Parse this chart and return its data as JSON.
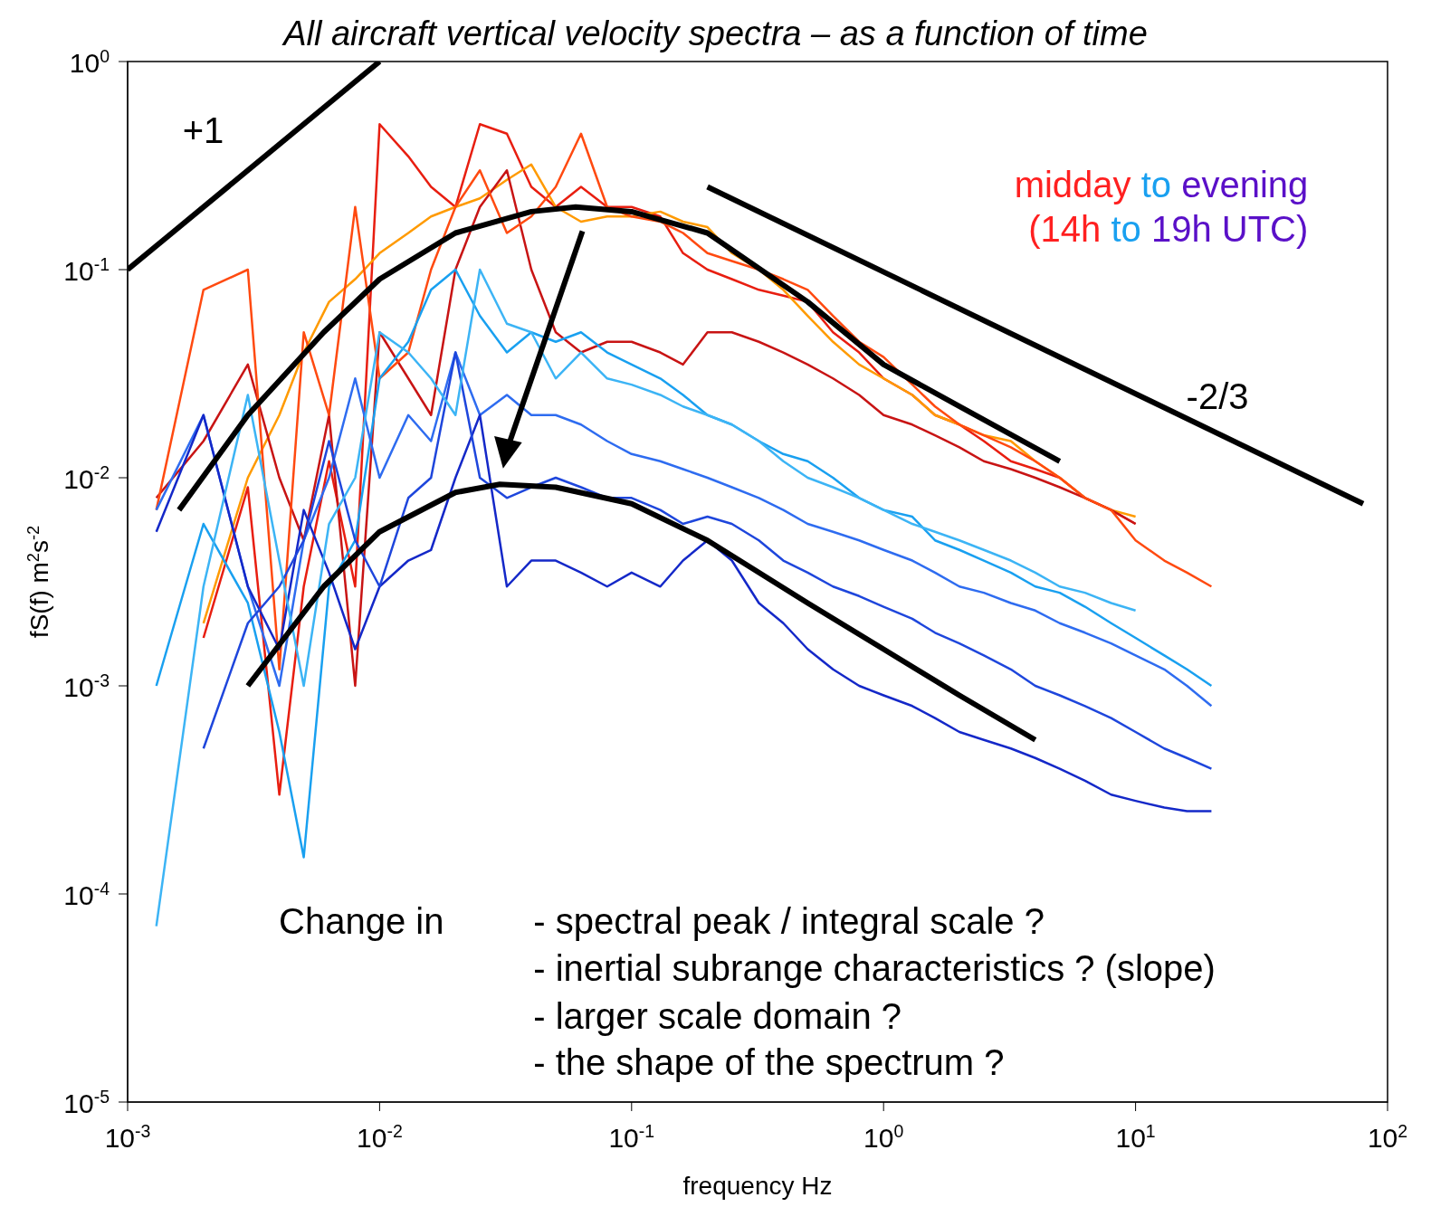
{
  "chart_data": {
    "type": "line",
    "title": "All aircraft vertical velocity spectra – as a function of time",
    "xlabel": "frequency Hz",
    "ylabel": "fS(f)  m$^{2}$s$^{-2}$",
    "log": "xy",
    "xlim": [
      0.001,
      100
    ],
    "ylim": [
      1e-05,
      1
    ],
    "xticks": [
      {
        "value": 0.001,
        "label": "10$^{-3}$"
      },
      {
        "value": 0.01,
        "label": "10$^{-2}$"
      },
      {
        "value": 0.1,
        "label": "10$^{-1}$"
      },
      {
        "value": 1,
        "label": "10$^{0}$"
      },
      {
        "value": 10,
        "label": "10$^{1}$"
      },
      {
        "value": 100,
        "label": "10$^{2}$"
      }
    ],
    "yticks": [
      {
        "value": 1e-05,
        "label": "10$^{-5}$"
      },
      {
        "value": 0.0001,
        "label": "10$^{-4}$"
      },
      {
        "value": 0.001,
        "label": "10$^{-3}$"
      },
      {
        "value": 0.01,
        "label": "10$^{-2}$"
      },
      {
        "value": 0.1,
        "label": "10$^{-1}$"
      },
      {
        "value": 1,
        "label": "10$^{0}$"
      }
    ],
    "x": [
      0.0013,
      0.002,
      0.003,
      0.004,
      0.005,
      0.0063,
      0.008,
      0.01,
      0.013,
      0.016,
      0.02,
      0.025,
      0.032,
      0.04,
      0.05,
      0.063,
      0.08,
      0.1,
      0.13,
      0.16,
      0.2,
      0.25,
      0.32,
      0.4,
      0.5,
      0.63,
      0.8,
      1,
      1.3,
      1.6,
      2,
      2.5,
      3.2,
      4,
      5,
      6.3,
      8,
      10,
      13,
      16,
      20
    ],
    "series": [
      {
        "color": "#e81e10",
        "values": [
          null,
          0.0017,
          0.009,
          0.0003,
          0.003,
          0.012,
          0.003,
          0.5,
          0.35,
          0.25,
          0.2,
          0.5,
          0.45,
          0.25,
          0.2,
          0.25,
          0.2,
          0.2,
          0.18,
          0.12,
          0.1,
          0.09,
          0.08,
          0.075,
          0.07,
          0.05,
          0.04,
          0.03,
          0.025,
          0.02,
          0.018,
          0.015,
          0.012,
          0.011,
          0.01,
          0.008,
          0.007,
          0.006,
          null,
          null,
          null
        ]
      },
      {
        "color": "#ff9a00",
        "values": [
          null,
          0.002,
          0.01,
          0.02,
          0.04,
          0.07,
          0.09,
          0.12,
          0.15,
          0.18,
          0.2,
          0.22,
          0.27,
          0.32,
          0.2,
          0.17,
          0.18,
          0.18,
          0.19,
          0.17,
          0.16,
          0.12,
          0.1,
          0.08,
          0.06,
          0.045,
          0.035,
          0.03,
          0.025,
          0.02,
          0.018,
          0.016,
          0.015,
          0.012,
          0.01,
          0.008,
          0.007,
          0.0065,
          null,
          null,
          null
        ]
      },
      {
        "color": "#c81414",
        "values": [
          0.008,
          0.015,
          0.035,
          0.01,
          0.005,
          0.02,
          0.001,
          0.05,
          0.03,
          0.02,
          0.1,
          0.2,
          0.3,
          0.1,
          0.05,
          0.04,
          0.045,
          0.045,
          0.04,
          0.035,
          0.05,
          0.05,
          0.045,
          0.04,
          0.035,
          0.03,
          0.025,
          0.02,
          0.018,
          0.016,
          0.014,
          0.012,
          0.011,
          0.01,
          0.009,
          0.008,
          0.007,
          0.006,
          null,
          null,
          null
        ]
      },
      {
        "color": "#ff4a10",
        "values": [
          0.007,
          0.08,
          0.1,
          0.0012,
          0.05,
          0.02,
          0.2,
          0.03,
          0.04,
          0.1,
          0.2,
          0.3,
          0.15,
          0.18,
          0.25,
          0.45,
          0.2,
          0.18,
          0.17,
          0.15,
          0.12,
          0.11,
          0.1,
          0.09,
          0.08,
          0.06,
          0.045,
          0.038,
          0.028,
          0.022,
          0.018,
          0.016,
          0.014,
          0.012,
          0.01,
          0.008,
          0.007,
          0.005,
          0.004,
          0.0035,
          0.003
        ]
      },
      {
        "color": "#19a0f0",
        "values": [
          0.001,
          0.006,
          0.0025,
          0.0006,
          0.00015,
          0.003,
          0.005,
          0.03,
          0.045,
          0.08,
          0.1,
          0.06,
          0.04,
          0.05,
          0.045,
          0.05,
          0.04,
          0.035,
          0.03,
          0.025,
          0.02,
          0.018,
          0.015,
          0.013,
          0.012,
          0.01,
          0.008,
          0.007,
          0.0065,
          0.005,
          0.0045,
          0.004,
          0.0035,
          0.003,
          0.0028,
          0.0024,
          0.002,
          0.0017,
          0.0014,
          0.0012,
          0.001
        ]
      },
      {
        "color": "#2e6cf0",
        "values": [
          0.007,
          0.02,
          0.003,
          0.001,
          0.005,
          0.01,
          0.03,
          0.01,
          0.02,
          0.015,
          0.04,
          0.02,
          0.025,
          0.02,
          0.02,
          0.018,
          0.015,
          0.013,
          0.012,
          0.011,
          0.01,
          0.009,
          0.008,
          0.007,
          0.006,
          0.0055,
          0.005,
          0.0045,
          0.004,
          0.0035,
          0.003,
          0.0028,
          0.0025,
          0.0023,
          0.002,
          0.0018,
          0.0016,
          0.0014,
          0.0012,
          0.001,
          0.0008
        ]
      },
      {
        "color": "#1428c8",
        "values": [
          0.0055,
          0.02,
          0.003,
          0.0015,
          0.007,
          0.0035,
          0.0015,
          0.003,
          0.004,
          0.0045,
          0.01,
          0.02,
          0.003,
          0.004,
          0.004,
          0.0035,
          0.003,
          0.0035,
          0.003,
          0.004,
          0.005,
          0.004,
          0.0025,
          0.002,
          0.0015,
          0.0012,
          0.001,
          0.0009,
          0.0008,
          0.0007,
          0.0006,
          0.00055,
          0.0005,
          0.00045,
          0.0004,
          0.00035,
          0.0003,
          0.00028,
          0.00026,
          0.00025,
          0.00025
        ]
      },
      {
        "color": "#1e46dc",
        "values": [
          null,
          0.0005,
          0.002,
          0.003,
          0.005,
          0.015,
          0.005,
          0.003,
          0.008,
          0.01,
          0.04,
          0.01,
          0.008,
          0.009,
          0.01,
          0.009,
          0.008,
          0.008,
          0.007,
          0.006,
          0.0065,
          0.006,
          0.005,
          0.004,
          0.0035,
          0.003,
          0.0027,
          0.0024,
          0.0021,
          0.0018,
          0.0016,
          0.0014,
          0.0012,
          0.001,
          0.0009,
          0.0008,
          0.0007,
          0.0006,
          0.0005,
          0.00045,
          0.0004
        ]
      },
      {
        "color": "#3cb4f5",
        "values": [
          7e-05,
          0.003,
          0.025,
          0.004,
          0.001,
          0.006,
          0.01,
          0.05,
          0.04,
          0.03,
          0.02,
          0.1,
          0.055,
          0.05,
          0.03,
          0.04,
          0.03,
          0.028,
          0.025,
          0.022,
          0.02,
          0.018,
          0.015,
          0.012,
          0.01,
          0.009,
          0.008,
          0.007,
          0.006,
          0.0055,
          0.005,
          0.0045,
          0.004,
          0.0035,
          0.003,
          0.0028,
          0.0025,
          0.0023,
          null,
          null,
          null
        ]
      },
      {
        "color": "#000000",
        "x": [
          0.0016,
          0.003,
          0.006,
          0.01,
          0.02,
          0.04,
          0.06,
          0.1,
          0.2,
          0.5,
          1,
          2,
          5
        ],
        "values": [
          0.007,
          0.02,
          0.05,
          0.09,
          0.15,
          0.19,
          0.2,
          0.19,
          0.15,
          0.07,
          0.035,
          0.022,
          0.012
        ]
      },
      {
        "color": "#000000",
        "x": [
          0.003,
          0.006,
          0.01,
          0.02,
          0.03,
          0.05,
          0.1,
          0.2,
          0.5,
          1,
          2,
          4
        ],
        "values": [
          0.001,
          0.003,
          0.0055,
          0.0085,
          0.0093,
          0.009,
          0.0075,
          0.005,
          0.0025,
          0.0015,
          0.0009,
          0.00055
        ]
      },
      {
        "color": "#000000",
        "x": [
          0.001,
          0.01
        ],
        "values": [
          0.1,
          1
        ]
      },
      {
        "color": "#000000",
        "x": [
          0.2,
          80
        ],
        "values": [
          0.25,
          0.0075
        ]
      }
    ],
    "annotations": [
      "+1",
      "-2/3",
      "midday to evening",
      "(14h to 19h UTC)",
      "Change in",
      "- spectral peak / integral scale ?",
      "- inertial subrange characteristics ? (slope)",
      "- larger scale domain ?",
      "- the shape of the spectrum ?"
    ]
  }
}
